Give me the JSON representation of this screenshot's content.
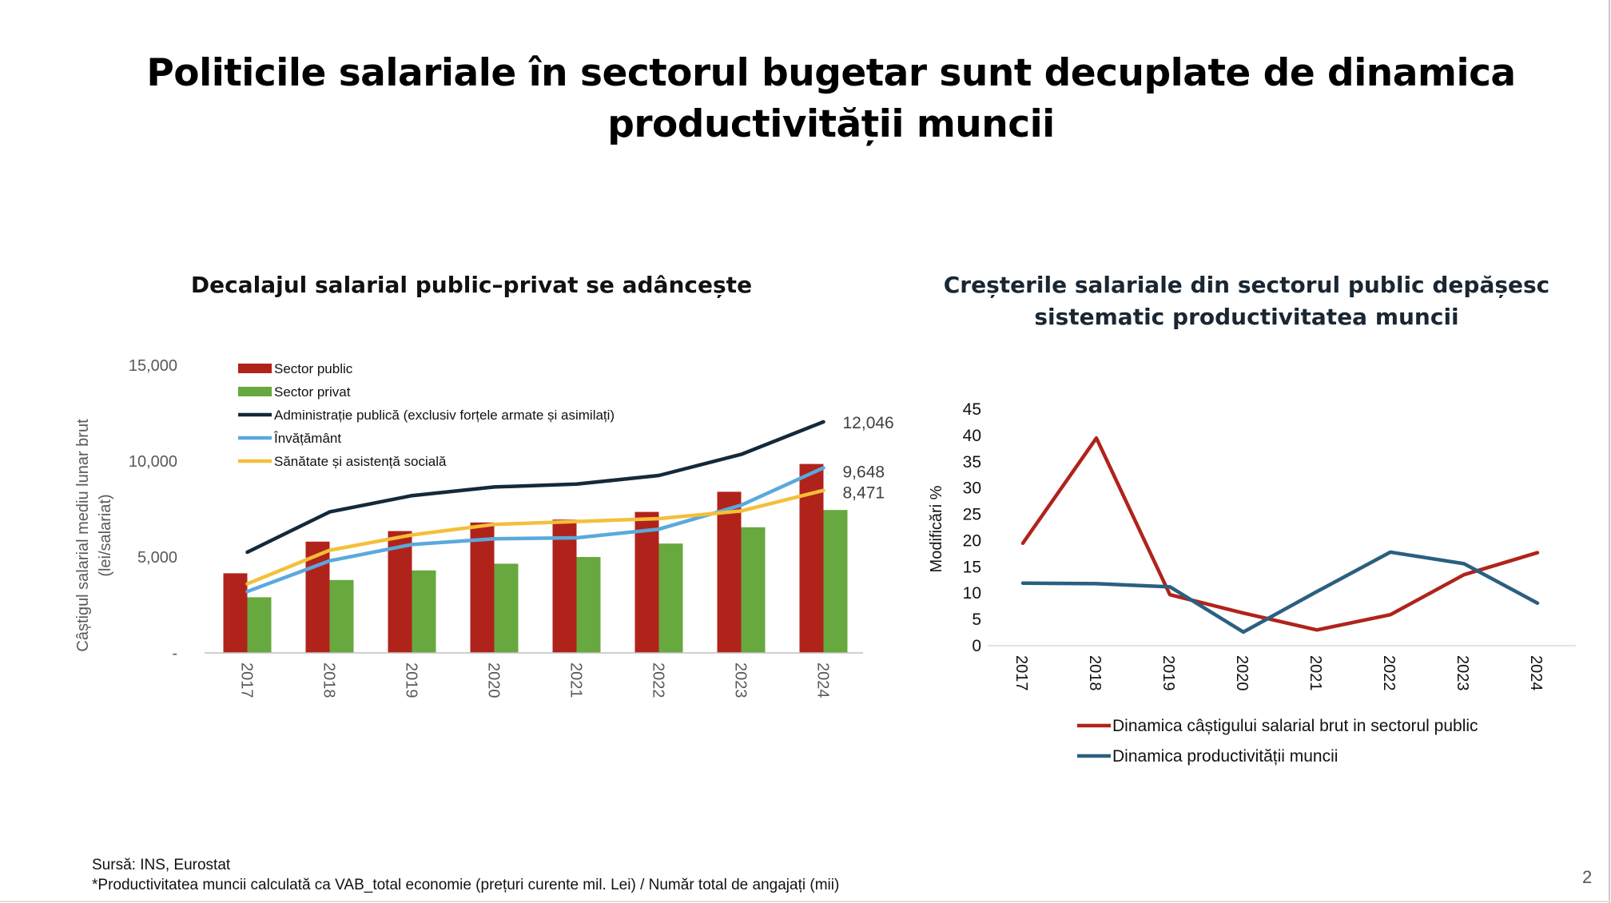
{
  "slide": {
    "title_line1": "Politicile salariale în sectorul bugetar sunt decuplate de dinamica",
    "title_line2": "productivității muncii",
    "source": "Sursă: INS, Eurostat",
    "footnote": "*Productivitatea muncii calculată ca VAB_total economie (prețuri curente mil. Lei) / Număr total de angajați (mii)",
    "page_number": "2"
  },
  "chart_data": [
    {
      "type": "bar",
      "title": "Decalajul salarial public–privat se adâncește",
      "ylabel": "Câștigul salarial mediu lunar brut (lei/salariat)",
      "ylabel_line1": "Câștigul salarial mediu lunar brut",
      "ylabel_line2": "(lei/salariat)",
      "ylim": [
        0,
        15000
      ],
      "yticks": [
        {
          "value": 0,
          "label": "-"
        },
        {
          "value": 5000,
          "label": "5,000"
        },
        {
          "value": 10000,
          "label": "10,000"
        },
        {
          "value": 15000,
          "label": "15,000"
        }
      ],
      "categories": [
        "2017",
        "2018",
        "2019",
        "2020",
        "2021",
        "2022",
        "2023",
        "2024"
      ],
      "legend_position": "top-left",
      "grid": false,
      "series": [
        {
          "name": "Sector public",
          "kind": "bar",
          "color": "#b0231b",
          "values": [
            4150,
            5800,
            6350,
            6800,
            6950,
            7350,
            8400,
            9850
          ]
        },
        {
          "name": "Sector privat",
          "kind": "bar",
          "color": "#67a83f",
          "values": [
            2900,
            3800,
            4300,
            4650,
            5000,
            5700,
            6550,
            7450
          ]
        },
        {
          "name": "Administrație publică (exclusiv forțele armate și asimilați)",
          "kind": "line",
          "color": "#14293a",
          "values": [
            5250,
            7350,
            8200,
            8650,
            8800,
            9250,
            10350,
            12046
          ],
          "end_label": "12,046"
        },
        {
          "name": "Învățământ",
          "kind": "line",
          "color": "#5aa9dd",
          "values": [
            3200,
            4800,
            5650,
            5950,
            6000,
            6450,
            7700,
            9648
          ],
          "end_label": "9,648"
        },
        {
          "name": "Sănătate și asistență socială",
          "kind": "line",
          "color": "#f4bf3a",
          "values": [
            3600,
            5350,
            6150,
            6700,
            6850,
            7000,
            7400,
            8471
          ],
          "end_label": "8,471"
        }
      ]
    },
    {
      "type": "line",
      "title": "Creșterile salariale din sectorul public depășesc sistematic productivitatea muncii",
      "title_line1": "Creșterile salariale din sectorul public depășesc",
      "title_line2": "sistematic productivitatea muncii",
      "ylabel": "Modificări %",
      "ylim": [
        0,
        45
      ],
      "yticks": [
        0,
        5,
        10,
        15,
        20,
        25,
        30,
        35,
        40,
        45
      ],
      "categories": [
        "2017",
        "2018",
        "2019",
        "2020",
        "2021",
        "2022",
        "2023",
        "2024"
      ],
      "legend_position": "bottom",
      "grid": false,
      "series": [
        {
          "name": "Dinamica câștigului salarial brut in sectorul public",
          "color": "#b0231b",
          "values": [
            19.5,
            39.5,
            9.7,
            6.2,
            3.0,
            5.9,
            13.5,
            17.7
          ]
        },
        {
          "name": "Dinamica productivității muncii",
          "color": "#2b5f80",
          "values": [
            11.9,
            11.8,
            11.2,
            2.6,
            10.3,
            17.8,
            15.6,
            8.1
          ]
        }
      ]
    }
  ]
}
